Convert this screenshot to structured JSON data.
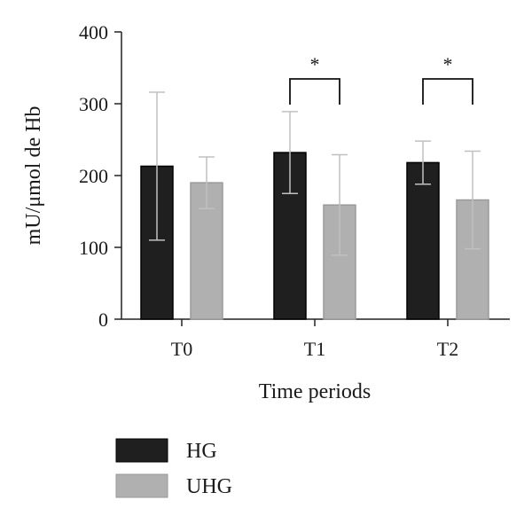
{
  "chart_data": {
    "type": "bar",
    "xlabel": "Time periods",
    "ylabel": "mU/μmol de Hb",
    "categories": [
      "T0",
      "T1",
      "T2"
    ],
    "ylim": [
      0,
      400
    ],
    "y_ticks": [
      0,
      100,
      200,
      300,
      400
    ],
    "series": [
      {
        "name": "HG",
        "color": "#1f1f1f",
        "values": [
          213,
          232,
          218
        ],
        "error": [
          103,
          57,
          30
        ]
      },
      {
        "name": "UHG",
        "color": "#b0b0b0",
        "values": [
          190,
          159,
          166
        ],
        "error": [
          36,
          70,
          68
        ]
      }
    ],
    "error_bar_color": "#c0c0c0",
    "significance": [
      {
        "category": "T1",
        "label": "*"
      },
      {
        "category": "T2",
        "label": "*"
      }
    ],
    "grid": false,
    "legend_position": "bottom-left"
  }
}
